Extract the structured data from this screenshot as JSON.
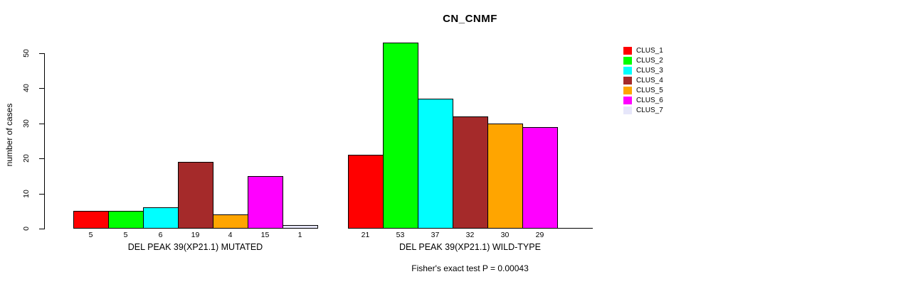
{
  "chart_data": {
    "type": "bar",
    "title": "CN_CNMF",
    "ylabel": "number of cases",
    "ylim": [
      0,
      50
    ],
    "yticks": [
      0,
      10,
      20,
      30,
      40,
      50
    ],
    "grid": false,
    "legend_position": "right",
    "annotation": "Fisher's exact test P = 0.00043",
    "categories": [
      "DEL PEAK 39(XP21.1) MUTATED",
      "DEL PEAK 39(XP21.1) WILD-TYPE"
    ],
    "series": [
      {
        "name": "CLUS_1",
        "color": "#ff0000",
        "values": [
          5,
          21
        ]
      },
      {
        "name": "CLUS_2",
        "color": "#00ff00",
        "values": [
          5,
          53
        ]
      },
      {
        "name": "CLUS_3",
        "color": "#00ffff",
        "values": [
          6,
          37
        ]
      },
      {
        "name": "CLUS_4",
        "color": "#a52a2a",
        "values": [
          19,
          32
        ]
      },
      {
        "name": "CLUS_5",
        "color": "#ffa500",
        "values": [
          4,
          30
        ]
      },
      {
        "name": "CLUS_6",
        "color": "#ff00ff",
        "values": [
          15,
          29
        ]
      },
      {
        "name": "CLUS_7",
        "color": "#e6e6fa",
        "values": [
          1,
          0
        ]
      }
    ],
    "bar_value_labels": [
      [
        "5",
        "5",
        "6",
        "19",
        "4",
        "15",
        "1"
      ],
      [
        "21",
        "53",
        "37",
        "32",
        "30",
        "29",
        ""
      ]
    ],
    "axis_color": "#000000",
    "bar_border_color": "#000000",
    "background_color": "#ffffff"
  }
}
